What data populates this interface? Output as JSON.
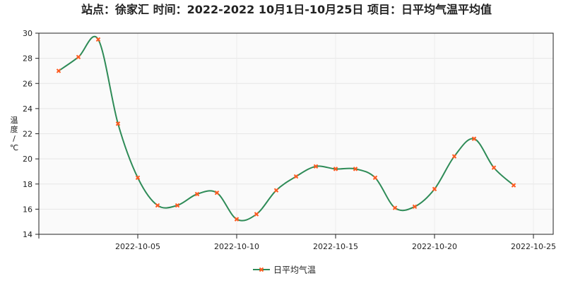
{
  "chart_data": {
    "type": "line",
    "title": "站点：徐家汇 时间：2022-2022  10月1日-10月25日 项目：日平均气温平均值",
    "ylabel": "温度/℃",
    "xlabel": "",
    "ylim": [
      14,
      30
    ],
    "yticks": [
      14,
      16,
      18,
      20,
      22,
      24,
      26,
      28,
      30
    ],
    "xlim": [
      "2022-09-30",
      "2022-10-26"
    ],
    "xticks": [
      "2022-10-05",
      "2022-10-10",
      "2022-10-15",
      "2022-10-20",
      "2022-10-25"
    ],
    "grid": true,
    "legend_position": "bottom",
    "x": [
      "2022-10-01",
      "2022-10-02",
      "2022-10-03",
      "2022-10-04",
      "2022-10-05",
      "2022-10-06",
      "2022-10-07",
      "2022-10-08",
      "2022-10-09",
      "2022-10-10",
      "2022-10-11",
      "2022-10-12",
      "2022-10-13",
      "2022-10-14",
      "2022-10-15",
      "2022-10-16",
      "2022-10-17",
      "2022-10-18",
      "2022-10-19",
      "2022-10-20",
      "2022-10-21",
      "2022-10-22",
      "2022-10-23",
      "2022-10-24"
    ],
    "series": [
      {
        "name": "日平均气温",
        "line_color": "#2e8b57",
        "marker_color": "#ff5a1f",
        "values": [
          27.0,
          28.1,
          29.5,
          22.8,
          18.5,
          16.3,
          16.3,
          17.2,
          17.3,
          15.2,
          15.6,
          17.5,
          18.6,
          19.4,
          19.2,
          19.2,
          18.5,
          16.1,
          16.2,
          17.6,
          20.2,
          21.6,
          19.3,
          17.9
        ]
      }
    ]
  }
}
